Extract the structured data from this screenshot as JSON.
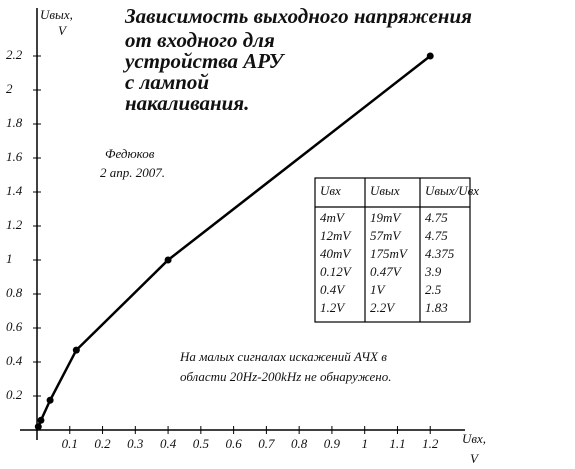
{
  "chart_data": {
    "type": "line",
    "title": [
      "Зависимость выходного напряжения",
      "от входного для",
      "устройства АРУ",
      "с лампой",
      "накаливания."
    ],
    "y_label": [
      "Uвых,",
      "V"
    ],
    "x_label": [
      "Uвх,",
      "V"
    ],
    "author": [
      "Федюков",
      "2 апр. 2007."
    ],
    "note": [
      "На малых сигналах искажений АЧХ в",
      "области 20Hz-200kHz не обнаружено."
    ],
    "x": [
      0.004,
      0.012,
      0.04,
      0.12,
      0.4,
      1.2
    ],
    "series": [
      {
        "color": "#000000",
        "values": [
          0.019,
          0.057,
          0.175,
          0.47,
          1,
          2.2
        ]
      }
    ],
    "xlim": [
      0,
      1.3
    ],
    "ylim": [
      0,
      2.4
    ],
    "xticks": [
      0.1,
      0.2,
      0.3,
      0.4,
      0.5,
      0.6,
      0.7,
      0.8,
      0.9,
      1,
      1.1,
      1.2
    ],
    "yticks": [
      0.2,
      0.4,
      0.6,
      0.8,
      1,
      1.2,
      1.4,
      1.6,
      1.8,
      2,
      2.2
    ],
    "table": {
      "header": [
        "Uвх",
        "Uвых",
        "Uвых/Uвх"
      ],
      "rows": [
        [
          "4mV",
          "19mV",
          "4.75"
        ],
        [
          "12mV",
          "57mV",
          "4.75"
        ],
        [
          "40mV",
          "175mV",
          "4.375"
        ],
        [
          "0.12V",
          "0.47V",
          "3.9"
        ],
        [
          "0.4V",
          "1V",
          "2.5"
        ],
        [
          "1.2V",
          "2.2V",
          "1.83"
        ]
      ]
    }
  }
}
